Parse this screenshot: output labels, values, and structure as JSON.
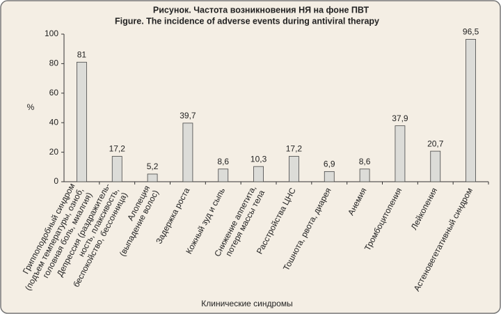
{
  "chart_data": {
    "type": "bar",
    "title": "Рисунок. Частота возникновения НЯ  на фоне ПВТ",
    "subtitle": "Figure.  The incidence of adverse events during antiviral therapy",
    "y_label": "%",
    "x_label": "Клинические синдромы",
    "categories": [
      [
        "Гриппоподобный синдром",
        "(подъем температуры, озноб,",
        "головная боль, миалгия)"
      ],
      [
        "Депрессия (раздражитель-",
        "ность, плаксивость,",
        "беспокойство, бессонница)"
      ],
      [
        "Алопеция",
        "(выпадение волос)"
      ],
      [
        "Задержка роста"
      ],
      [
        "Кожный зуд и сыпь"
      ],
      [
        "Снижение аппетита,",
        "потеря массы тела"
      ],
      [
        "Расстройства ЦНС"
      ],
      [
        "Тошнота, рвота, диарея"
      ],
      [
        "Анемия"
      ],
      [
        "Тромбоцитопения"
      ],
      [
        "Лейкопения"
      ],
      [
        "Астеновегетативный синдром"
      ]
    ],
    "values": [
      81,
      17.2,
      5.2,
      39.7,
      8.6,
      10.3,
      17.2,
      6.9,
      8.6,
      37.9,
      20.7,
      96.5
    ],
    "value_labels": [
      "81",
      "17,2",
      "5,2",
      "39,7",
      "8,6",
      "10,3",
      "17,2",
      "6,9",
      "8,6",
      "37,9",
      "20,7",
      "96,5"
    ],
    "color": "#dcdcd8",
    "ylim": [
      0,
      100
    ],
    "yticks": [
      0,
      20,
      40,
      60,
      80,
      100
    ]
  }
}
